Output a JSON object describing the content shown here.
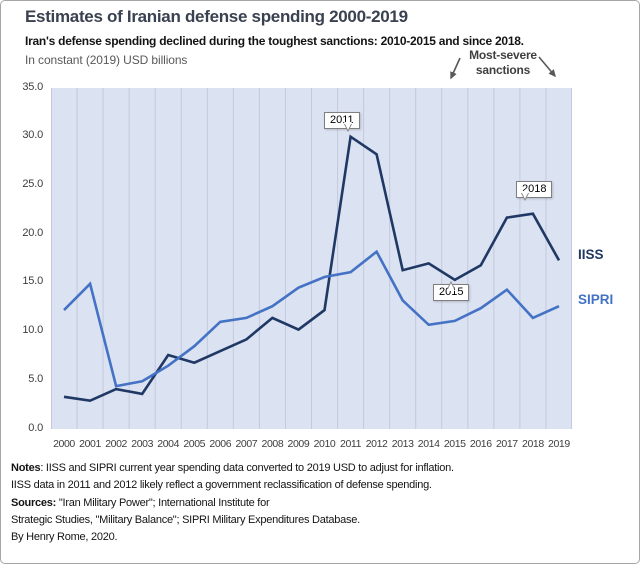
{
  "figure": {
    "title": "Estimates of Iranian defense spending 2000-2019",
    "subtitle": "Iran's defense spending declined during the toughest sanctions: 2010-2015  and since 2018.",
    "units_line": "In constant (2019) USD billions"
  },
  "annotation": {
    "line1": "Most-severe",
    "line2": "sanctions"
  },
  "chart_data": {
    "type": "line",
    "title": "Estimates of Iranian defense spending 2000-2019",
    "ylabel": "In constant (2019) USD billions",
    "ylim": [
      0,
      35
    ],
    "yticks": [
      "35.0",
      "30.0",
      "25.0",
      "20.0",
      "15.0",
      "10.0",
      "5.0",
      "0.0"
    ],
    "grid": "vertical-only",
    "legend_position": "right-outside",
    "categories": [
      "2000",
      "2001",
      "2002",
      "2003",
      "2004",
      "2005",
      "2006",
      "2007",
      "2008",
      "2009",
      "2010",
      "2011",
      "2012",
      "2013",
      "2014",
      "2015",
      "2016",
      "2017",
      "2018",
      "2019"
    ],
    "series": [
      {
        "name": "IISS",
        "color": "#1f3864",
        "values": [
          3.3,
          2.9,
          4.1,
          3.6,
          7.6,
          6.8,
          8.0,
          9.2,
          11.4,
          10.2,
          12.2,
          30.0,
          28.2,
          16.3,
          17.0,
          15.3,
          16.8,
          21.7,
          22.1,
          17.3
        ]
      },
      {
        "name": "SIPRI",
        "color": "#4472c4",
        "values": [
          12.2,
          14.9,
          4.4,
          4.9,
          6.5,
          8.5,
          11.0,
          11.4,
          12.6,
          14.5,
          15.6,
          16.1,
          18.2,
          13.2,
          10.7,
          11.1,
          12.4,
          14.3,
          11.4,
          12.6
        ]
      }
    ],
    "callouts": [
      {
        "label": "2011",
        "series": "IISS",
        "year": "2011"
      },
      {
        "label": "2015",
        "series": "IISS",
        "year": "2015"
      },
      {
        "label": "2018",
        "series": "IISS",
        "year": "2018"
      }
    ],
    "plot_colors": {
      "background": "#dbe2f2",
      "gridline": "#c3cadd"
    }
  },
  "notes": {
    "line1_label": "Notes",
    "line1_text": ": IISS and SIPRI current year spending data converted to 2019 USD to adjust for inflation.",
    "line2": "IISS data in 2011 and 2012 likely reflect a government  reclassification of defense spending.",
    "line3_label": "Sources:",
    "line3_text": " \"Iran Military Power\"; International Institute for",
    "line4": "Strategic Studies, \"Military Balance\"; SIPRI Military Expenditures Database.",
    "line5": "By Henry Rome, 2020."
  }
}
